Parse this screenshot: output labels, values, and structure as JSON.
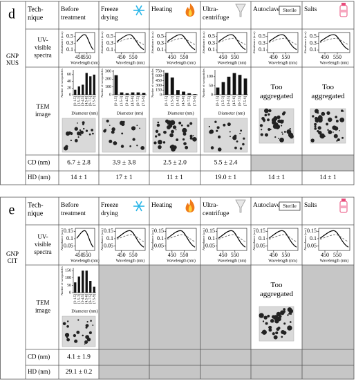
{
  "axis_labels": {
    "absorbance": "Absorbance (a.u.)",
    "wavelength": "Wavelength (nm)",
    "count": "Number of nanoparticles",
    "diameter": "Diameter (nm)"
  },
  "panels": [
    {
      "letter": "d",
      "sample": [
        "GNP",
        "NUS"
      ],
      "header": [
        "Tech-",
        "nique"
      ],
      "row_labels": [
        [
          "UV-",
          "visible",
          "spectra"
        ],
        [
          "TEM",
          "image"
        ],
        [
          "CD (nm)"
        ],
        [
          "HD (nm)"
        ]
      ],
      "uv_axes": {
        "xlim": [
          400,
          650
        ],
        "xticks": [
          450,
          550
        ],
        "ylim": [
          0.02,
          0.62
        ],
        "yticks": [
          0.5,
          0.3,
          0.1
        ]
      },
      "hist_categories": [
        "[0-1.5]",
        "[1.5-3]",
        "[3-4.5]",
        "[4.5-6]",
        "[6-7.5]",
        "[7.5-9]"
      ],
      "columns": [
        {
          "name": [
            "Before",
            "treatment"
          ],
          "tem": {
            "type": "bar",
            "values": [
              15,
              25,
              30,
              65,
              55,
              60
            ],
            "ylim": [
              0,
              70
            ],
            "yticks": [
              0,
              20,
              40,
              60
            ]
          },
          "cd": "6.7 ± 2.8",
          "hd": "14 ± 1"
        },
        {
          "name": [
            "Freeze",
            "drying"
          ],
          "tem": {
            "type": "bar",
            "values": [
              250,
              30,
              20,
              30,
              30,
              25
            ],
            "ylim": [
              0,
              300
            ],
            "yticks": [
              0,
              100,
              200,
              300
            ]
          },
          "cd": "3.9 ± 3.8",
          "hd": "17 ± 1"
        },
        {
          "name": [
            "Heating"
          ],
          "tem": {
            "type": "bar",
            "values": [
              700,
              550,
              150,
              100,
              50,
              20
            ],
            "ylim": [
              0,
              750
            ],
            "yticks": [
              0,
              150,
              300,
              450,
              600,
              750
            ]
          },
          "cd": "2.5 ± 2.0",
          "hd": "11 ± 1"
        },
        {
          "name": [
            "Ultra-",
            "centrifuge"
          ],
          "tem": {
            "type": "bar",
            "values": [
              40,
              70,
              100,
              120,
              110,
              90
            ],
            "ylim": [
              0,
              130
            ],
            "yticks": [
              0,
              50,
              100
            ]
          },
          "cd": "5.5 ± 2.4",
          "hd": "19.0 ± 1"
        },
        {
          "name": [
            "Autoclave"
          ],
          "badge": "Sterile",
          "tem": {
            "note": [
              "Too",
              "aggregated"
            ]
          },
          "cd": null,
          "hd": "14 ± 1"
        },
        {
          "name": [
            "Salts"
          ],
          "tem": {
            "note": [
              "Too",
              "aggregated"
            ]
          },
          "cd": null,
          "hd": "14 ± 1"
        }
      ]
    },
    {
      "letter": "e",
      "sample": [
        "GNP",
        "CIT"
      ],
      "header": [
        "Tech-",
        "nique"
      ],
      "row_labels": [
        [
          "UV-",
          "visible",
          "spectra"
        ],
        [
          "TEM",
          "image"
        ],
        [
          "CD (nm)"
        ],
        [
          "HD (nm)"
        ]
      ],
      "uv_axes": {
        "xlim": [
          400,
          650
        ],
        "xticks": [
          450,
          550
        ],
        "ylim": [
          0.02,
          0.17
        ],
        "yticks": [
          0.15,
          0.1,
          0.05
        ]
      },
      "hist_categories": [
        "[0-1.5]",
        "[1.5-3]",
        "[3-4.5]",
        "[4.5-6]",
        "[6-7.5]",
        "[7.5-9]"
      ],
      "columns": [
        {
          "name": [
            "Before",
            "treatment"
          ],
          "tem": {
            "type": "bar",
            "values": [
              70,
              110,
              150,
              150,
              80,
              40
            ],
            "ylim": [
              0,
              160
            ],
            "yticks": [
              0,
              50,
              100,
              150
            ]
          },
          "cd": "4.1 ± 1.9",
          "hd": "29.1 ± 0.2"
        },
        {
          "name": [
            "Freeze",
            "drying"
          ],
          "tem": null,
          "cd": null,
          "hd": null
        },
        {
          "name": [
            "Heating"
          ],
          "tem": null,
          "cd": null,
          "hd": null
        },
        {
          "name": [
            "Ultra-",
            "centrifuge"
          ],
          "tem": null,
          "cd": null,
          "hd": null
        },
        {
          "name": [
            "Autoclave"
          ],
          "badge": "Sterile",
          "tem": {
            "note": [
              "Too",
              "aggregated"
            ]
          },
          "cd": null,
          "hd": null
        },
        {
          "name": [
            "Salts"
          ],
          "tem": null,
          "cd": null,
          "hd": null
        }
      ]
    }
  ]
}
